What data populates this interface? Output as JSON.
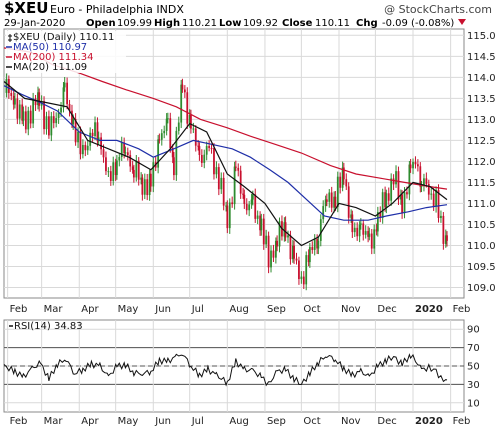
{
  "header": {
    "symbol": "$XEU",
    "name": "Euro - Philadelphia INDX",
    "watermark": "@ StockCharts.com",
    "date": "29-Jan-2020",
    "open_label": "Open",
    "open": "109.99",
    "high_label": "High",
    "high": "110.21",
    "low_label": "Low",
    "low": "109.92",
    "close_label": "Close",
    "close": "110.11",
    "chg_label": "Chg",
    "chg": "-0.09 (-0.08%)"
  },
  "legend": {
    "price": "$XEU (Daily) 110.11",
    "ma50": "MA(50) 110.97",
    "ma200": "MA(200) 111.34",
    "ma20": "MA(20) 111.09"
  },
  "rsi_legend": "RSI(14) 34.83",
  "colors": {
    "up": "#2e8b2e",
    "down": "#c8102e",
    "ma50": "#1f2fa8",
    "ma200": "#c8102e",
    "ma20": "#111111",
    "grid": "#d9d9d9"
  },
  "chart_data": [
    {
      "type": "candlestick",
      "title": "$XEU (Daily) 110.11",
      "ylim": [
        108.75,
        115.15
      ],
      "yticks": [
        "115.0",
        "114.5",
        "114.0",
        "113.5",
        "113.0",
        "112.5",
        "112.0",
        "111.5",
        "111.0",
        "110.5",
        "110.0",
        "109.5",
        "109.0"
      ],
      "xticks": [
        "Feb",
        "Mar",
        "Apr",
        "May",
        "Jun",
        "Jul",
        "Aug",
        "Sep",
        "Oct",
        "Nov",
        "Dec",
        "2020",
        "Feb"
      ],
      "x_range": [
        "2019-01-29",
        "2020-02-12"
      ],
      "closes": [
        {
          "date": "2019-01-29",
          "value": 113.8
        },
        {
          "date": "2019-02-07",
          "value": 113.4
        },
        {
          "date": "2019-02-14",
          "value": 112.9
        },
        {
          "date": "2019-02-20",
          "value": 113.2
        },
        {
          "date": "2019-02-27",
          "value": 113.5
        },
        {
          "date": "2019-03-07",
          "value": 112.7
        },
        {
          "date": "2019-03-13",
          "value": 113.1
        },
        {
          "date": "2019-03-20",
          "value": 113.6
        },
        {
          "date": "2019-03-27",
          "value": 112.9
        },
        {
          "date": "2019-04-02",
          "value": 112.2
        },
        {
          "date": "2019-04-10",
          "value": 112.6
        },
        {
          "date": "2019-04-17",
          "value": 112.7
        },
        {
          "date": "2019-04-25",
          "value": 111.5
        },
        {
          "date": "2019-05-02",
          "value": 112.1
        },
        {
          "date": "2019-05-09",
          "value": 112.3
        },
        {
          "date": "2019-05-16",
          "value": 111.8
        },
        {
          "date": "2019-05-23",
          "value": 111.5
        },
        {
          "date": "2019-05-30",
          "value": 111.4
        },
        {
          "date": "2019-06-06",
          "value": 112.6
        },
        {
          "date": "2019-06-13",
          "value": 112.8
        },
        {
          "date": "2019-06-18",
          "value": 112.0
        },
        {
          "date": "2019-06-25",
          "value": 113.8
        },
        {
          "date": "2019-07-02",
          "value": 112.8
        },
        {
          "date": "2019-07-09",
          "value": 112.1
        },
        {
          "date": "2019-07-17",
          "value": 112.3
        },
        {
          "date": "2019-07-25",
          "value": 111.6
        },
        {
          "date": "2019-08-01",
          "value": 110.6
        },
        {
          "date": "2019-08-08",
          "value": 111.8
        },
        {
          "date": "2019-08-15",
          "value": 111.0
        },
        {
          "date": "2019-08-22",
          "value": 110.9
        },
        {
          "date": "2019-08-29",
          "value": 110.5
        },
        {
          "date": "2019-09-04",
          "value": 109.6
        },
        {
          "date": "2019-09-11",
          "value": 110.2
        },
        {
          "date": "2019-09-18",
          "value": 110.4
        },
        {
          "date": "2019-09-25",
          "value": 109.6
        },
        {
          "date": "2019-10-01",
          "value": 109.2
        },
        {
          "date": "2019-10-08",
          "value": 109.8
        },
        {
          "date": "2019-10-15",
          "value": 110.3
        },
        {
          "date": "2019-10-22",
          "value": 111.2
        },
        {
          "date": "2019-10-29",
          "value": 111.1
        },
        {
          "date": "2019-11-05",
          "value": 111.8
        },
        {
          "date": "2019-11-12",
          "value": 110.2
        },
        {
          "date": "2019-11-19",
          "value": 110.5
        },
        {
          "date": "2019-11-26",
          "value": 110.0
        },
        {
          "date": "2019-12-03",
          "value": 110.6
        },
        {
          "date": "2019-12-10",
          "value": 111.2
        },
        {
          "date": "2019-12-16",
          "value": 111.6
        },
        {
          "date": "2019-12-23",
          "value": 111.0
        },
        {
          "date": "2019-12-30",
          "value": 111.7
        },
        {
          "date": "2020-01-03",
          "value": 112.1
        },
        {
          "date": "2020-01-08",
          "value": 111.5
        },
        {
          "date": "2020-01-14",
          "value": 111.3
        },
        {
          "date": "2020-01-20",
          "value": 111.1
        },
        {
          "date": "2020-01-24",
          "value": 110.4
        },
        {
          "date": "2020-01-29",
          "value": 110.11
        }
      ],
      "ma50": [
        {
          "date": "2019-01-29",
          "value": 113.8
        },
        {
          "date": "2019-02-12",
          "value": 113.6
        },
        {
          "date": "2019-02-28",
          "value": 113.4
        },
        {
          "date": "2019-03-14",
          "value": 113.2
        },
        {
          "date": "2019-04-01",
          "value": 112.7
        },
        {
          "date": "2019-04-18",
          "value": 112.5
        },
        {
          "date": "2019-05-02",
          "value": 112.5
        },
        {
          "date": "2019-05-20",
          "value": 112.3
        },
        {
          "date": "2019-06-01",
          "value": 112.1
        },
        {
          "date": "2019-06-18",
          "value": 112.3
        },
        {
          "date": "2019-07-04",
          "value": 112.5
        },
        {
          "date": "2019-07-20",
          "value": 112.4
        },
        {
          "date": "2019-08-05",
          "value": 112.3
        },
        {
          "date": "2019-08-20",
          "value": 112.1
        },
        {
          "date": "2019-09-05",
          "value": 111.8
        },
        {
          "date": "2019-09-20",
          "value": 111.5
        },
        {
          "date": "2019-10-05",
          "value": 111.1
        },
        {
          "date": "2019-10-20",
          "value": 110.7
        },
        {
          "date": "2019-11-05",
          "value": 110.6
        },
        {
          "date": "2019-11-25",
          "value": 110.6
        },
        {
          "date": "2019-12-10",
          "value": 110.7
        },
        {
          "date": "2019-12-28",
          "value": 110.8
        },
        {
          "date": "2020-01-12",
          "value": 110.9
        },
        {
          "date": "2020-01-29",
          "value": 110.97
        }
      ],
      "ma200": [
        {
          "date": "2019-01-29",
          "value": 114.7
        },
        {
          "date": "2019-02-20",
          "value": 114.6
        },
        {
          "date": "2019-03-10",
          "value": 114.3
        },
        {
          "date": "2019-04-01",
          "value": 114.1
        },
        {
          "date": "2019-04-20",
          "value": 113.9
        },
        {
          "date": "2019-05-10",
          "value": 113.7
        },
        {
          "date": "2019-06-01",
          "value": 113.5
        },
        {
          "date": "2019-06-20",
          "value": 113.3
        },
        {
          "date": "2019-07-10",
          "value": 113.0
        },
        {
          "date": "2019-08-01",
          "value": 112.8
        },
        {
          "date": "2019-08-20",
          "value": 112.6
        },
        {
          "date": "2019-09-10",
          "value": 112.4
        },
        {
          "date": "2019-10-01",
          "value": 112.2
        },
        {
          "date": "2019-10-25",
          "value": 111.9
        },
        {
          "date": "2019-11-15",
          "value": 111.7
        },
        {
          "date": "2019-12-05",
          "value": 111.6
        },
        {
          "date": "2019-12-25",
          "value": 111.5
        },
        {
          "date": "2020-01-15",
          "value": 111.4
        },
        {
          "date": "2020-01-29",
          "value": 111.34
        }
      ],
      "ma20": [
        {
          "date": "2019-01-29",
          "value": 113.9
        },
        {
          "date": "2019-02-15",
          "value": 113.5
        },
        {
          "date": "2019-03-05",
          "value": 113.4
        },
        {
          "date": "2019-03-22",
          "value": 113.3
        },
        {
          "date": "2019-04-08",
          "value": 112.5
        },
        {
          "date": "2019-04-25",
          "value": 112.3
        },
        {
          "date": "2019-05-12",
          "value": 112.1
        },
        {
          "date": "2019-05-30",
          "value": 111.8
        },
        {
          "date": "2019-06-15",
          "value": 112.3
        },
        {
          "date": "2019-07-01",
          "value": 112.9
        },
        {
          "date": "2019-07-15",
          "value": 112.7
        },
        {
          "date": "2019-08-01",
          "value": 111.7
        },
        {
          "date": "2019-08-15",
          "value": 111.4
        },
        {
          "date": "2019-09-01",
          "value": 111.0
        },
        {
          "date": "2019-09-15",
          "value": 110.4
        },
        {
          "date": "2019-10-01",
          "value": 110.0
        },
        {
          "date": "2019-10-15",
          "value": 110.2
        },
        {
          "date": "2019-11-01",
          "value": 111.0
        },
        {
          "date": "2019-11-15",
          "value": 110.9
        },
        {
          "date": "2019-12-01",
          "value": 110.7
        },
        {
          "date": "2019-12-15",
          "value": 111.0
        },
        {
          "date": "2020-01-01",
          "value": 111.5
        },
        {
          "date": "2020-01-15",
          "value": 111.4
        },
        {
          "date": "2020-01-29",
          "value": 111.09
        }
      ]
    },
    {
      "type": "line",
      "title": "RSI(14) 34.83",
      "ylim": [
        0,
        100
      ],
      "yticks": [
        "90",
        "70",
        "50",
        "30",
        "10"
      ],
      "reference_lines": [
        70,
        50,
        30
      ],
      "xticks": [
        "Feb",
        "Mar",
        "Apr",
        "May",
        "Jun",
        "Jul",
        "Aug",
        "Sep",
        "Oct",
        "Nov",
        "Dec",
        "2020",
        "Feb"
      ],
      "x_range": [
        "2019-01-29",
        "2020-02-12"
      ],
      "values": [
        {
          "date": "2019-01-29",
          "value": 50
        },
        {
          "date": "2019-02-07",
          "value": 44
        },
        {
          "date": "2019-02-14",
          "value": 38
        },
        {
          "date": "2019-02-21",
          "value": 47
        },
        {
          "date": "2019-02-28",
          "value": 53
        },
        {
          "date": "2019-03-07",
          "value": 36
        },
        {
          "date": "2019-03-14",
          "value": 52
        },
        {
          "date": "2019-03-21",
          "value": 58
        },
        {
          "date": "2019-03-28",
          "value": 42
        },
        {
          "date": "2019-04-04",
          "value": 46
        },
        {
          "date": "2019-04-11",
          "value": 52
        },
        {
          "date": "2019-04-18",
          "value": 50
        },
        {
          "date": "2019-04-25",
          "value": 38
        },
        {
          "date": "2019-05-02",
          "value": 50
        },
        {
          "date": "2019-05-09",
          "value": 51
        },
        {
          "date": "2019-05-16",
          "value": 43
        },
        {
          "date": "2019-05-23",
          "value": 42
        },
        {
          "date": "2019-05-30",
          "value": 44
        },
        {
          "date": "2019-06-06",
          "value": 56
        },
        {
          "date": "2019-06-13",
          "value": 55
        },
        {
          "date": "2019-06-20",
          "value": 60
        },
        {
          "date": "2019-06-25",
          "value": 64
        },
        {
          "date": "2019-07-02",
          "value": 50
        },
        {
          "date": "2019-07-09",
          "value": 40
        },
        {
          "date": "2019-07-16",
          "value": 46
        },
        {
          "date": "2019-07-23",
          "value": 40
        },
        {
          "date": "2019-08-01",
          "value": 32
        },
        {
          "date": "2019-08-08",
          "value": 55
        },
        {
          "date": "2019-08-15",
          "value": 46
        },
        {
          "date": "2019-08-22",
          "value": 45
        },
        {
          "date": "2019-08-29",
          "value": 38
        },
        {
          "date": "2019-09-04",
          "value": 30
        },
        {
          "date": "2019-09-11",
          "value": 44
        },
        {
          "date": "2019-09-18",
          "value": 46
        },
        {
          "date": "2019-09-25",
          "value": 36
        },
        {
          "date": "2019-10-01",
          "value": 30
        },
        {
          "date": "2019-10-08",
          "value": 42
        },
        {
          "date": "2019-10-15",
          "value": 54
        },
        {
          "date": "2019-10-22",
          "value": 62
        },
        {
          "date": "2019-10-29",
          "value": 57
        },
        {
          "date": "2019-11-05",
          "value": 47
        },
        {
          "date": "2019-11-12",
          "value": 40
        },
        {
          "date": "2019-11-19",
          "value": 44
        },
        {
          "date": "2019-11-26",
          "value": 38
        },
        {
          "date": "2019-12-03",
          "value": 50
        },
        {
          "date": "2019-12-10",
          "value": 56
        },
        {
          "date": "2019-12-16",
          "value": 60
        },
        {
          "date": "2019-12-23",
          "value": 52
        },
        {
          "date": "2019-12-30",
          "value": 62
        },
        {
          "date": "2020-01-03",
          "value": 56
        },
        {
          "date": "2020-01-08",
          "value": 46
        },
        {
          "date": "2020-01-14",
          "value": 48
        },
        {
          "date": "2020-01-20",
          "value": 45
        },
        {
          "date": "2020-01-24",
          "value": 36
        },
        {
          "date": "2020-01-29",
          "value": 34.83
        }
      ]
    }
  ]
}
